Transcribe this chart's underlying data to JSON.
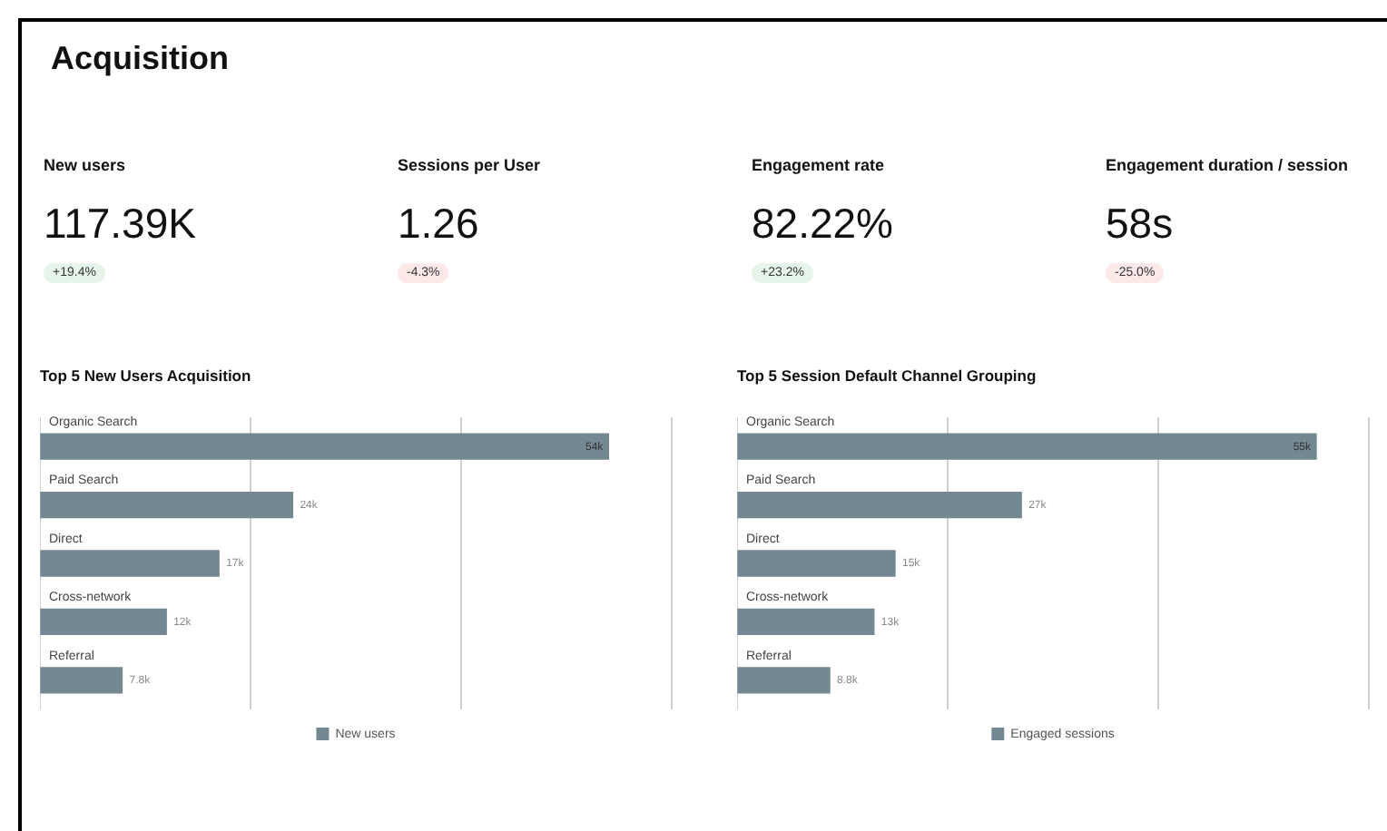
{
  "chart_data": [
    {
      "type": "other",
      "title": "Acquisition",
      "categories": [
        "New users",
        "Sessions per User",
        "Engagement rate",
        "Engagement duration / session"
      ],
      "value_labels": [
        "117.39K",
        "1.26",
        "82.22%",
        "58s"
      ],
      "annotations": [
        "+19.4%",
        "-4.3%",
        "+23.2%",
        "-25.0%"
      ],
      "colors": [
        "#e6f4ea",
        "#fce8e6",
        "#e6f4ea",
        "#fce8e6"
      ]
    },
    {
      "type": "bar",
      "orientation": "horizontal",
      "title": "Top 5 New Users Acquisition",
      "categories": [
        "Organic Search",
        "Paid Search",
        "Direct",
        "Cross-network",
        "Referral"
      ],
      "series": [
        {
          "name": "New users",
          "color": "#748892",
          "values": [
            54000,
            24000,
            17000,
            12000,
            7800
          ],
          "value_labels": [
            "54k",
            "24k",
            "17k",
            "12k",
            "7.8k"
          ]
        }
      ],
      "xlim": [
        0,
        60000
      ],
      "xticks": [
        {
          "value": 0,
          "label": null
        },
        {
          "value": 20000,
          "label": null
        },
        {
          "value": 40000,
          "label": null
        },
        {
          "value": 60000,
          "label": null
        }
      ],
      "tick_labels": "y",
      "grid": "x",
      "legend": "bottom"
    },
    {
      "type": "bar",
      "orientation": "horizontal",
      "title": "Top 5 Session Default Channel Grouping",
      "categories": [
        "Organic Search",
        "Paid Search",
        "Direct",
        "Cross-network",
        "Referral"
      ],
      "series": [
        {
          "name": "Engaged sessions",
          "color": "#748892",
          "values": [
            55000,
            27000,
            15000,
            13000,
            8800
          ],
          "value_labels": [
            "55k",
            "27k",
            "15k",
            "13k",
            "8.8k"
          ]
        }
      ],
      "xlim": [
        0,
        60000
      ],
      "xticks": [
        {
          "value": 0,
          "label": null
        },
        {
          "value": 20000,
          "label": null
        },
        {
          "value": 40000,
          "label": null
        },
        {
          "value": 60000,
          "label": null
        }
      ],
      "tick_labels": "y",
      "grid": "x",
      "legend": "bottom"
    }
  ]
}
